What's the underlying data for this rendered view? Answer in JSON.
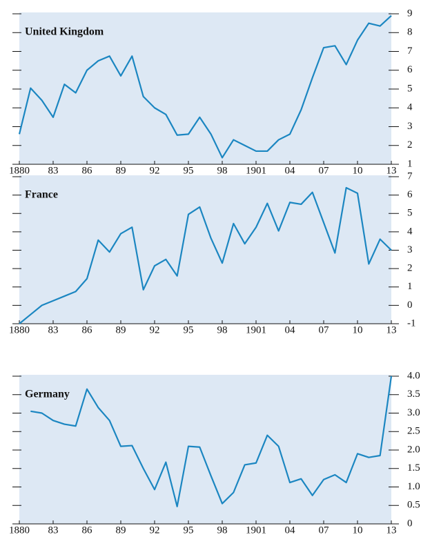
{
  "chart_data": [
    {
      "type": "line",
      "title": "United Kingdom",
      "color": "#1b86c1",
      "x": [
        1880,
        1881,
        1882,
        1883,
        1884,
        1885,
        1886,
        1887,
        1888,
        1889,
        1890,
        1891,
        1892,
        1893,
        1894,
        1895,
        1896,
        1897,
        1898,
        1899,
        1900,
        1901,
        1902,
        1903,
        1904,
        1905,
        1906,
        1907,
        1908,
        1909,
        1910,
        1911,
        1912,
        1913
      ],
      "values": [
        2.6,
        5.05,
        4.4,
        3.5,
        5.25,
        4.8,
        6.0,
        6.5,
        6.75,
        5.7,
        6.75,
        4.6,
        4.0,
        3.65,
        2.55,
        2.6,
        3.5,
        2.6,
        1.35,
        2.3,
        2.0,
        1.7,
        1.7,
        2.3,
        2.6,
        3.9,
        5.6,
        7.2,
        7.3,
        6.3,
        7.6,
        8.5,
        8.35,
        8.9
      ],
      "xlim": [
        1880,
        1913
      ],
      "xticks": [
        1880,
        {
          "value": 1883,
          "label": "83"
        },
        {
          "value": 1886,
          "label": "86"
        },
        {
          "value": 1889,
          "label": "89"
        },
        {
          "value": 1892,
          "label": "92"
        },
        {
          "value": 1895,
          "label": "95"
        },
        {
          "value": 1898,
          "label": "98"
        },
        1901,
        {
          "value": 1904,
          "label": "04"
        },
        {
          "value": 1907,
          "label": "07"
        },
        {
          "value": 1910,
          "label": "10"
        },
        {
          "value": 1913,
          "label": "13"
        }
      ],
      "ylim": [
        1,
        9
      ],
      "yticks": [
        1,
        2,
        3,
        4,
        5,
        6,
        7,
        8,
        9
      ]
    },
    {
      "type": "line",
      "title": "France",
      "color": "#1b86c1",
      "x": [
        1880,
        1881,
        1882,
        1883,
        1884,
        1885,
        1886,
        1887,
        1888,
        1889,
        1890,
        1891,
        1892,
        1893,
        1894,
        1895,
        1896,
        1897,
        1898,
        1899,
        1900,
        1901,
        1902,
        1903,
        1904,
        1905,
        1906,
        1907,
        1908,
        1909,
        1910,
        1911,
        1912,
        1913
      ],
      "values": [
        -1.0,
        -0.5,
        0.0,
        0.25,
        0.5,
        0.75,
        1.45,
        3.55,
        2.9,
        3.9,
        4.25,
        0.85,
        2.15,
        2.5,
        1.6,
        4.95,
        5.35,
        3.65,
        2.3,
        4.45,
        3.35,
        4.25,
        5.55,
        4.05,
        5.6,
        5.5,
        6.15,
        4.5,
        2.85,
        6.4,
        6.1,
        2.25,
        3.6,
        3.0
      ],
      "xlim": [
        1880,
        1913
      ],
      "xticks": [
        1880,
        {
          "value": 1883,
          "label": "83"
        },
        {
          "value": 1886,
          "label": "86"
        },
        {
          "value": 1889,
          "label": "89"
        },
        {
          "value": 1892,
          "label": "92"
        },
        {
          "value": 1895,
          "label": "95"
        },
        {
          "value": 1898,
          "label": "98"
        },
        1901,
        {
          "value": 1904,
          "label": "04"
        },
        {
          "value": 1907,
          "label": "07"
        },
        {
          "value": 1910,
          "label": "10"
        },
        {
          "value": 1913,
          "label": "13"
        }
      ],
      "ylim": [
        -1,
        7
      ],
      "yticks": [
        -1,
        0,
        1,
        2,
        3,
        4,
        5,
        6,
        7
      ]
    },
    {
      "type": "line",
      "title": "Germany",
      "color": "#1b86c1",
      "x": [
        1880,
        1881,
        1882,
        1883,
        1884,
        1885,
        1886,
        1887,
        1888,
        1889,
        1890,
        1891,
        1892,
        1893,
        1894,
        1895,
        1896,
        1897,
        1898,
        1899,
        1900,
        1901,
        1902,
        1903,
        1904,
        1905,
        1906,
        1907,
        1908,
        1909,
        1910,
        1911,
        1912,
        1913
      ],
      "values": [
        null,
        3.05,
        3.0,
        2.8,
        2.7,
        2.65,
        3.65,
        3.15,
        2.8,
        2.1,
        2.12,
        1.5,
        0.93,
        1.67,
        0.47,
        2.1,
        2.08,
        1.3,
        0.55,
        0.85,
        1.6,
        1.65,
        2.4,
        2.1,
        1.12,
        1.22,
        0.77,
        1.2,
        1.33,
        1.12,
        1.9,
        1.8,
        1.85,
        4.0
      ],
      "xlim": [
        1880,
        1913
      ],
      "xticks": [
        1880,
        {
          "value": 1883,
          "label": "83"
        },
        {
          "value": 1886,
          "label": "86"
        },
        {
          "value": 1889,
          "label": "89"
        },
        {
          "value": 1892,
          "label": "92"
        },
        {
          "value": 1895,
          "label": "95"
        },
        {
          "value": 1898,
          "label": "98"
        },
        1901,
        {
          "value": 1904,
          "label": "04"
        },
        {
          "value": 1907,
          "label": "07"
        },
        {
          "value": 1910,
          "label": "10"
        },
        {
          "value": 1913,
          "label": "13"
        }
      ],
      "ylim": [
        0,
        4
      ],
      "yticks": [
        0,
        0.5,
        {
          "value": 1,
          "label": "1.0"
        },
        1.5,
        {
          "value": 2,
          "label": "2.0"
        },
        2.5,
        {
          "value": 3,
          "label": "3.0"
        },
        3.5,
        {
          "value": 4,
          "label": "4.0"
        }
      ]
    }
  ]
}
